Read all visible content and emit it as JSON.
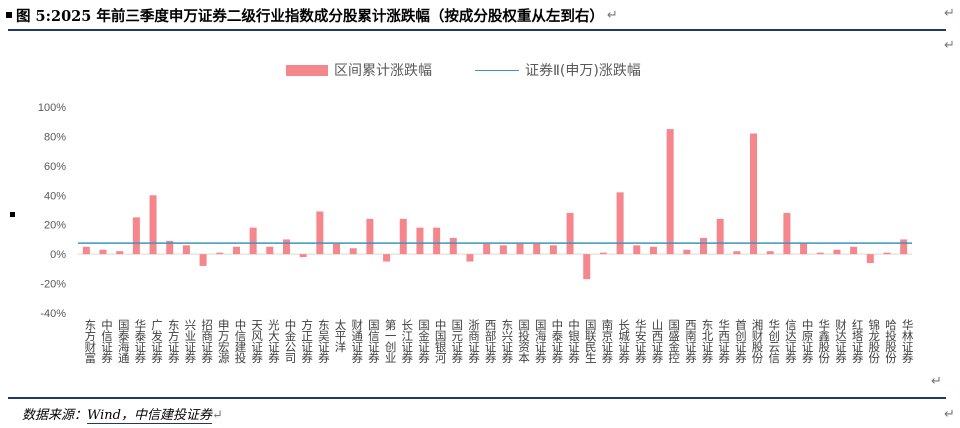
{
  "header": {
    "title": "图 5:2025 年前三季度申万证券二级行业指数成分股累计涨跌幅（按成分股权重从左到右）"
  },
  "footer": {
    "source_label": "数据来源：",
    "source_text": "Wind，中信建投证券"
  },
  "marks": {
    "paragraph": "↵"
  },
  "colors": {
    "bar": "#f4868c",
    "line": "#3a95c2",
    "rule": "#1f3864"
  },
  "chart_data": {
    "type": "bar",
    "categories": [
      "东方财富",
      "中信证券",
      "国泰海通",
      "华泰证券",
      "广发证券",
      "东方证券",
      "兴业证券",
      "招商证券",
      "申万宏源",
      "中信建投",
      "天风证券",
      "光大证券",
      "中金公司",
      "方正证券",
      "东吴证券",
      "太平洋",
      "财通证券",
      "国信证券",
      "第一创业",
      "长江证券",
      "国金证券",
      "中国银河",
      "国元证券",
      "浙商证券",
      "西部证券",
      "东兴证券",
      "国投资本",
      "国海证券",
      "中泰证券",
      "中银证券",
      "国联民生",
      "南京证券",
      "长城证券",
      "华安证券",
      "山西证券",
      "国盛金控",
      "西南证券",
      "东北证券",
      "华西证券",
      "首创证券",
      "湘财股份",
      "华创云信",
      "信达证券",
      "中原证券",
      "华鑫股份",
      "财达证券",
      "红塔证券",
      "锦龙股份",
      "哈投股份",
      "华林证券"
    ],
    "series": [
      {
        "name": "区间累计涨跌幅",
        "type": "bar",
        "values": [
          5,
          3,
          2,
          25,
          40,
          9,
          6,
          -8,
          1,
          5,
          18,
          5,
          10,
          -2,
          29,
          7,
          4,
          24,
          -5,
          24,
          18,
          18,
          11,
          -5,
          7,
          6,
          7,
          7,
          6,
          28,
          -17,
          1,
          42,
          6,
          5,
          85,
          3,
          11,
          24,
          2,
          82,
          2,
          28,
          7,
          1,
          3,
          5,
          -6,
          1,
          10
        ]
      },
      {
        "name": "证券Ⅱ(申万)涨跌幅",
        "type": "line",
        "value": 7.5
      }
    ],
    "yticks": [
      "100%",
      "80%",
      "60%",
      "40%",
      "20%",
      "0%",
      "-20%",
      "-40%"
    ],
    "ylim": [
      -40,
      100
    ],
    "grid": false,
    "legend_position": "top-center"
  }
}
